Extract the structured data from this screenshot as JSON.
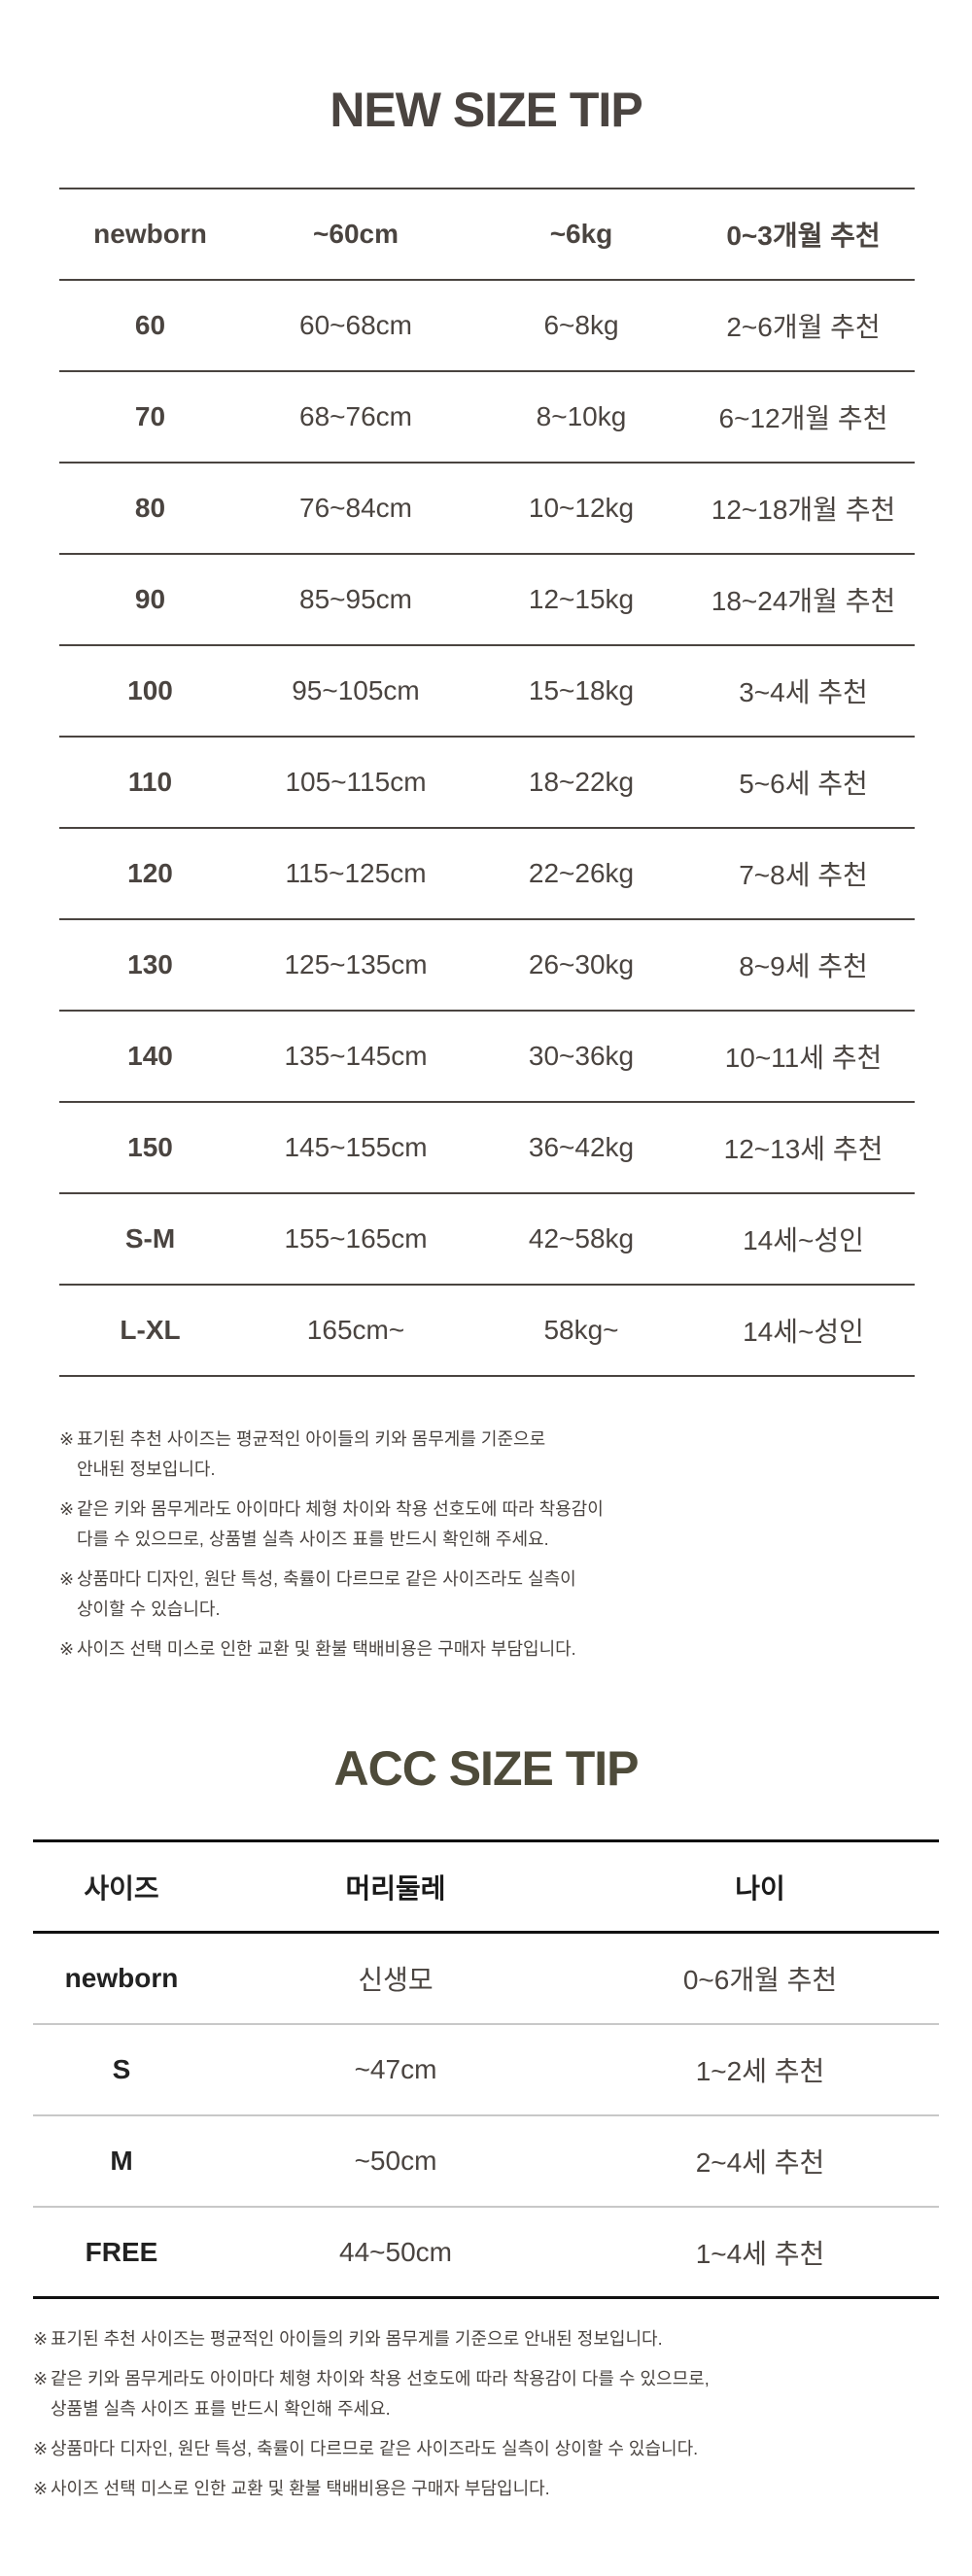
{
  "new_size": {
    "title": "NEW SIZE TIP",
    "rows": [
      [
        "newborn",
        "~60cm",
        "~6kg",
        "0~3개월 추천"
      ],
      [
        "60",
        "60~68cm",
        "6~8kg",
        "2~6개월 추천"
      ],
      [
        "70",
        "68~76cm",
        "8~10kg",
        "6~12개월 추천"
      ],
      [
        "80",
        "76~84cm",
        "10~12kg",
        "12~18개월 추천"
      ],
      [
        "90",
        "85~95cm",
        "12~15kg",
        "18~24개월 추천"
      ],
      [
        "100",
        "95~105cm",
        "15~18kg",
        "3~4세 추천"
      ],
      [
        "110",
        "105~115cm",
        "18~22kg",
        "5~6세 추천"
      ],
      [
        "120",
        "115~125cm",
        "22~26kg",
        "7~8세 추천"
      ],
      [
        "130",
        "125~135cm",
        "26~30kg",
        "8~9세 추천"
      ],
      [
        "140",
        "135~145cm",
        "30~36kg",
        "10~11세 추천"
      ],
      [
        "150",
        "145~155cm",
        "36~42kg",
        "12~13세 추천"
      ],
      [
        "S-M",
        "155~165cm",
        "42~58kg",
        "14세~성인"
      ],
      [
        "L-XL",
        "165cm~",
        "58kg~",
        "14세~성인"
      ]
    ],
    "notes": [
      "표기된 추천 사이즈는 평균적인 아이들의 키와 몸무게를 기준으로\n안내된 정보입니다.",
      "같은 키와 몸무게라도 아이마다 체형 차이와 착용 선호도에 따라 착용감이\n다를 수 있으므로, 상품별 실측 사이즈 표를 반드시 확인해 주세요.",
      "상품마다 디자인, 원단 특성, 축률이 다르므로 같은 사이즈라도 실측이\n상이할 수 있습니다.",
      "사이즈 선택 미스로 인한 교환 및 환불 택배비용은 구매자 부담입니다."
    ]
  },
  "acc_size": {
    "title": "ACC SIZE TIP",
    "header": [
      "사이즈",
      "머리둘레",
      "나이"
    ],
    "rows": [
      [
        "newborn",
        "신생모",
        "0~6개월 추천"
      ],
      [
        "S",
        "~47cm",
        "1~2세 추천"
      ],
      [
        "M",
        "~50cm",
        "2~4세 추천"
      ],
      [
        "FREE",
        "44~50cm",
        "1~4세 추천"
      ]
    ],
    "notes": [
      "표기된 추천 사이즈는 평균적인 아이들의 키와 몸무게를 기준으로 안내된 정보입니다.",
      "같은 키와 몸무게라도 아이마다 체형 차이와 착용 선호도에 따라 착용감이 다를 수 있으므로,\n상품별 실측 사이즈 표를 반드시 확인해 주세요.",
      "상품마다 디자인, 원단 특성, 축률이 다르므로 같은 사이즈라도 실측이 상이할 수 있습니다.",
      "사이즈 선택 미스로 인한 교환 및 환불 택배비용은 구매자 부담입니다."
    ]
  },
  "note_mark": "※",
  "colors": {
    "text": "#4a4440",
    "acc_title": "#4e4b3a",
    "rule": "#4a4440",
    "light_rule": "#c8c8c8"
  }
}
